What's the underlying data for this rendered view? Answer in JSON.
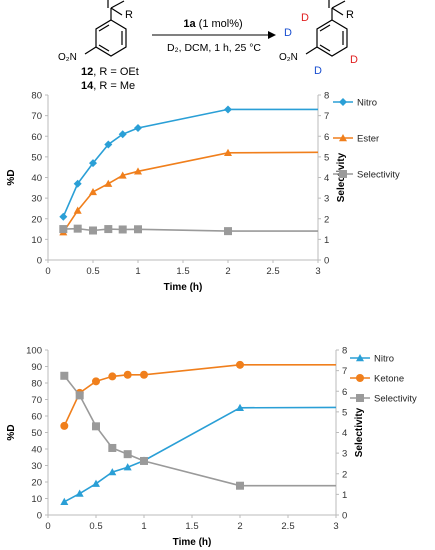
{
  "scheme": {
    "reagent_bold": "1a",
    "reagent_rest": " (1 mol%)",
    "conditions": "D₂, DCM, 1 h, 25 °C",
    "substituent_r": "R",
    "o2n": "O₂N",
    "deuterium": "D",
    "compound_a_num": "12",
    "compound_a_label": ", R = OEt",
    "compound_b_num": "14",
    "compound_b_label": ", R = Me",
    "colors": {
      "red_d": "#e02020",
      "blue_d": "#1a4fd0"
    }
  },
  "chart_data": [
    {
      "type": "line",
      "ylabel": "%D",
      "y2label": "Selectivity",
      "xlabel": "Time (h)",
      "xlim": [
        0,
        3
      ],
      "xticks": [
        "0",
        "0.5",
        "1",
        "1.5",
        "2",
        "2.5",
        "3"
      ],
      "ylim": [
        0,
        80
      ],
      "yticks": [
        "0",
        "10",
        "20",
        "30",
        "40",
        "50",
        "60",
        "70",
        "80"
      ],
      "y2lim": [
        0,
        8
      ],
      "y2ticks": [
        "0",
        "1",
        "2",
        "3",
        "4",
        "5",
        "6",
        "7",
        "8"
      ],
      "legend_position": "right",
      "series": [
        {
          "name": "Nitro",
          "axis": "left",
          "color": "#2a9fd6",
          "marker": "diamond",
          "x": [
            0.17,
            0.33,
            0.5,
            0.67,
            0.83,
            1.0,
            2.0,
            3.0
          ],
          "y": [
            21,
            37,
            47,
            56,
            61,
            64,
            73,
            73
          ],
          "marker_count": 7
        },
        {
          "name": "Ester",
          "axis": "left",
          "color": "#f07f1c",
          "marker": "triangle",
          "x": [
            0.17,
            0.33,
            0.5,
            0.67,
            0.83,
            1.0,
            2.0,
            3.0
          ],
          "y": [
            13.5,
            24,
            33,
            37,
            41,
            43,
            52,
            52.2
          ],
          "marker_count": 7
        },
        {
          "name": "Selectivity",
          "axis": "right",
          "color": "#9a9a9a",
          "marker": "square",
          "x": [
            0.17,
            0.33,
            0.5,
            0.67,
            0.83,
            1.0,
            2.0,
            3.0
          ],
          "y": [
            1.5,
            1.52,
            1.43,
            1.5,
            1.48,
            1.49,
            1.4,
            1.4
          ],
          "marker_count": 7
        }
      ]
    },
    {
      "type": "line",
      "ylabel": "%D",
      "y2label": "Selectivity",
      "xlabel": "Time (h)",
      "xlim": [
        0,
        3
      ],
      "xticks": [
        "0",
        "0.5",
        "1",
        "1.5",
        "2",
        "2.5",
        "3"
      ],
      "ylim": [
        0,
        100
      ],
      "yticks": [
        "0",
        "10",
        "20",
        "30",
        "40",
        "50",
        "60",
        "70",
        "80",
        "90",
        "100"
      ],
      "y2lim": [
        0,
        8
      ],
      "y2ticks": [
        "0",
        "1",
        "2",
        "3",
        "4",
        "5",
        "6",
        "7",
        "8"
      ],
      "legend_position": "right",
      "series": [
        {
          "name": "Nitro",
          "axis": "left",
          "color": "#2a9fd6",
          "marker": "triangle",
          "x": [
            0.17,
            0.33,
            0.5,
            0.67,
            0.83,
            1.0,
            2.0,
            3.0
          ],
          "y": [
            8,
            13,
            19,
            26,
            29,
            33,
            65,
            65.2
          ],
          "marker_count": 7
        },
        {
          "name": "Ketone",
          "axis": "left",
          "color": "#f07f1c",
          "marker": "circle",
          "x": [
            0.17,
            0.33,
            0.5,
            0.67,
            0.83,
            1.0,
            2.0,
            3.0
          ],
          "y": [
            54,
            74,
            81,
            84,
            85,
            85,
            91,
            91
          ],
          "marker_count": 7
        },
        {
          "name": "Selectivity",
          "axis": "right",
          "color": "#9a9a9a",
          "marker": "square",
          "x": [
            0.17,
            0.33,
            0.5,
            0.67,
            0.83,
            1.0,
            2.0,
            3.0
          ],
          "y": [
            6.75,
            5.8,
            4.3,
            3.25,
            2.95,
            2.62,
            1.42,
            1.42
          ],
          "marker_count": 7
        }
      ]
    }
  ]
}
